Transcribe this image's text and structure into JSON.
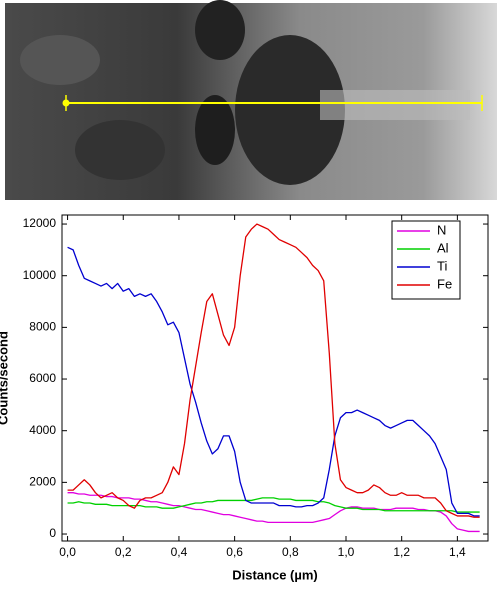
{
  "chart_data": {
    "type": "line",
    "x_label": "Distance (µm)",
    "y_label": "Counts/second",
    "x": [
      0,
      0.02,
      0.04,
      0.06,
      0.08,
      0.1,
      0.12,
      0.14,
      0.16,
      0.18,
      0.2,
      0.22,
      0.24,
      0.26,
      0.28,
      0.3,
      0.32,
      0.34,
      0.36,
      0.38,
      0.4,
      0.42,
      0.44,
      0.46,
      0.48,
      0.5,
      0.52,
      0.54,
      0.56,
      0.58,
      0.6,
      0.62,
      0.64,
      0.66,
      0.68,
      0.7,
      0.72,
      0.74,
      0.76,
      0.78,
      0.8,
      0.82,
      0.84,
      0.86,
      0.88,
      0.9,
      0.92,
      0.94,
      0.96,
      0.98,
      1.0,
      1.02,
      1.04,
      1.06,
      1.08,
      1.1,
      1.12,
      1.14,
      1.16,
      1.18,
      1.2,
      1.22,
      1.24,
      1.26,
      1.28,
      1.3,
      1.32,
      1.34,
      1.36,
      1.38,
      1.4,
      1.42,
      1.44,
      1.46,
      1.48
    ],
    "series": [
      {
        "name": "N",
        "color": "#e000e0",
        "values": [
          1600,
          1600,
          1550,
          1550,
          1500,
          1500,
          1500,
          1450,
          1450,
          1400,
          1400,
          1400,
          1350,
          1350,
          1300,
          1250,
          1250,
          1200,
          1150,
          1100,
          1100,
          1050,
          1000,
          950,
          950,
          900,
          850,
          800,
          750,
          750,
          700,
          650,
          600,
          550,
          500,
          500,
          450,
          450,
          450,
          450,
          450,
          450,
          450,
          450,
          450,
          500,
          550,
          600,
          750,
          900,
          1000,
          1050,
          1050,
          1000,
          1000,
          1000,
          950,
          950,
          950,
          1000,
          1000,
          1000,
          1000,
          950,
          950,
          900,
          900,
          850,
          700,
          400,
          200,
          150,
          100,
          100,
          100
        ]
      },
      {
        "name": "Al",
        "color": "#00d000",
        "values": [
          1200,
          1200,
          1250,
          1200,
          1200,
          1150,
          1150,
          1150,
          1100,
          1100,
          1100,
          1100,
          1100,
          1100,
          1050,
          1050,
          1050,
          1000,
          1000,
          1000,
          1050,
          1100,
          1150,
          1200,
          1200,
          1250,
          1250,
          1300,
          1300,
          1300,
          1300,
          1300,
          1300,
          1300,
          1350,
          1400,
          1400,
          1400,
          1350,
          1350,
          1350,
          1300,
          1300,
          1300,
          1300,
          1250,
          1250,
          1200,
          1100,
          1050,
          1000,
          1000,
          1000,
          950,
          950,
          950,
          950,
          900,
          900,
          900,
          900,
          900,
          900,
          900,
          900,
          900,
          900,
          900,
          900,
          900,
          850,
          850,
          850,
          850,
          850
        ]
      },
      {
        "name": "Ti",
        "color": "#0000d0",
        "values": [
          11100,
          11000,
          10400,
          9900,
          9800,
          9700,
          9600,
          9700,
          9500,
          9700,
          9400,
          9500,
          9200,
          9300,
          9200,
          9300,
          9000,
          8600,
          8100,
          8200,
          7800,
          6800,
          5800,
          5100,
          4300,
          3600,
          3100,
          3300,
          3800,
          3800,
          3200,
          2000,
          1300,
          1200,
          1200,
          1200,
          1200,
          1200,
          1100,
          1100,
          1100,
          1050,
          1050,
          1100,
          1100,
          1200,
          1400,
          2500,
          3800,
          4500,
          4700,
          4700,
          4800,
          4700,
          4600,
          4500,
          4400,
          4200,
          4100,
          4200,
          4300,
          4400,
          4400,
          4200,
          4000,
          3800,
          3500,
          3000,
          2500,
          1200,
          800,
          800,
          800,
          700,
          700
        ]
      },
      {
        "name": "Fe",
        "color": "#e00000",
        "values": [
          1700,
          1700,
          1900,
          2100,
          1900,
          1600,
          1400,
          1500,
          1600,
          1400,
          1300,
          1100,
          1000,
          1300,
          1400,
          1400,
          1500,
          1600,
          2000,
          2600,
          2300,
          3500,
          5200,
          6500,
          7800,
          9000,
          9300,
          8500,
          7700,
          7300,
          8000,
          10000,
          11500,
          11800,
          12000,
          11900,
          11800,
          11600,
          11400,
          11300,
          11200,
          11100,
          10900,
          10700,
          10400,
          10200,
          9800,
          7000,
          3500,
          2100,
          1800,
          1700,
          1600,
          1600,
          1700,
          1900,
          1800,
          1600,
          1500,
          1500,
          1600,
          1500,
          1500,
          1500,
          1400,
          1400,
          1400,
          1200,
          900,
          800,
          700,
          700,
          700,
          650,
          650
        ]
      }
    ],
    "xlim": [
      -0.02,
      1.51
    ],
    "ylim": [
      -270,
      12350
    ],
    "xticks": [
      {
        "value": 0,
        "label": "0,0"
      },
      {
        "value": 0.2,
        "label": "0,2"
      },
      {
        "value": 0.4,
        "label": "0,4"
      },
      {
        "value": 0.6,
        "label": "0,6"
      },
      {
        "value": 0.8,
        "label": "0,8"
      },
      {
        "value": 1.0,
        "label": "1,0"
      },
      {
        "value": 1.2,
        "label": "1,2"
      },
      {
        "value": 1.4,
        "label": "1,4"
      }
    ],
    "yticks": [
      0,
      2000,
      4000,
      6000,
      8000,
      10000,
      12000
    ],
    "legend": "upper right",
    "grid": false
  }
}
